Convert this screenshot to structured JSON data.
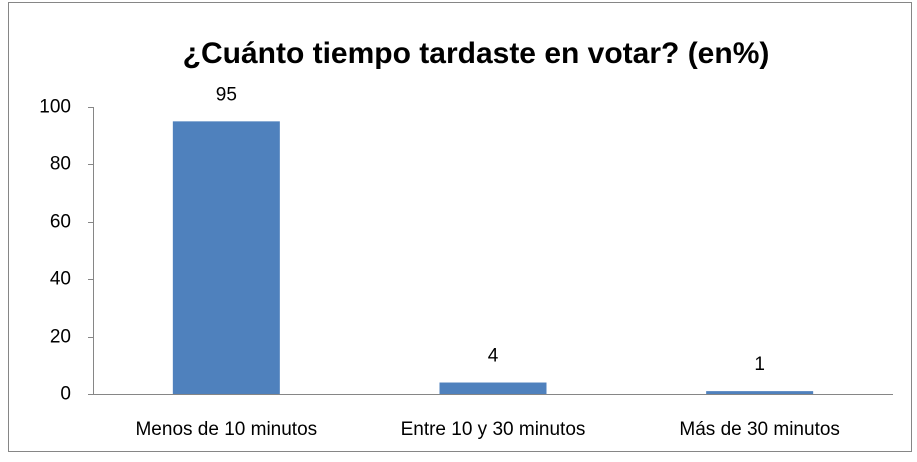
{
  "chart_data": {
    "type": "bar",
    "title": "¿Cuánto tiempo tardaste en votar? (en%)",
    "categories": [
      "Menos de 10 minutos",
      "Entre 10 y 30 minutos",
      "Más de 30 minutos"
    ],
    "values": [
      95,
      4,
      1
    ],
    "color": "#4f81bd",
    "ylim": [
      0,
      100
    ],
    "yticks": [
      0,
      20,
      40,
      60,
      80,
      100
    ],
    "grid": false
  }
}
